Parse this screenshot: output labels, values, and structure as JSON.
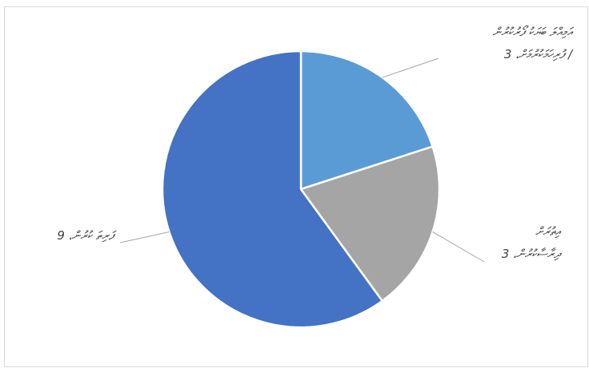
{
  "chart_data": {
    "type": "pie",
    "categories": [
      [
        "އަމިއްލަ ބަޔަކު ފޯރުކުރުން",
        "/ ފުރިހަމަކުރުމަށް،"
      ],
      [
        "އިތުރަށް",
        "ދިރާސާކުރުން،"
      ],
      [
        "ފަރިތަ ކުރުން،"
      ]
    ],
    "values": [
      3,
      3,
      9
    ],
    "colors": [
      "#5b9bd5",
      "#a5a5a5",
      "#4472c4"
    ]
  }
}
